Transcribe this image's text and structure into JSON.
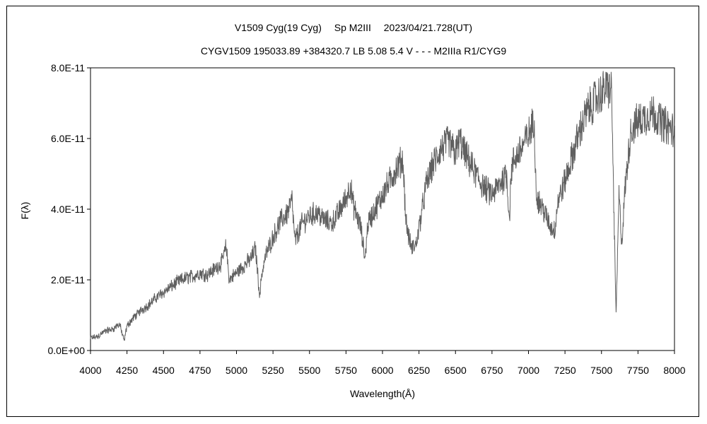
{
  "chart_data": {
    "type": "line",
    "title": "V1509 Cyg(19 Cyg)　 Sp M2III　 2023/04/21.728(UT)",
    "subtitle": "CYGV1509 195033.89 +384320.7 LB 5.08 5.4 V - - - M2IIIa R1/CYG9",
    "xlabel": "Wavelength(Å)",
    "ylabel": "F(λ)",
    "xlim": [
      4000,
      8000
    ],
    "ylim": [
      0,
      8e-11
    ],
    "x_ticks": [
      "4000",
      "4250",
      "4500",
      "4750",
      "5000",
      "5250",
      "5500",
      "5750",
      "6000",
      "6250",
      "6500",
      "6750",
      "7000",
      "7250",
      "7500",
      "7750",
      "8000"
    ],
    "y_ticks": [
      "0.0E+00",
      "2.0E-11",
      "4.0E-11",
      "6.0E-11",
      "8.0E-11"
    ],
    "grid": false,
    "legend": "none",
    "line_color": "#606060",
    "series": [
      {
        "x": [
          4000,
          4050,
          4100,
          4150,
          4200,
          4230,
          4250,
          4300,
          4350,
          4400,
          4450,
          4500,
          4550,
          4600,
          4650,
          4700,
          4750,
          4800,
          4850,
          4900,
          4930,
          4950,
          5000,
          5050,
          5100,
          5130,
          5160,
          5170,
          5200,
          5230,
          5260,
          5300,
          5350,
          5380,
          5400,
          5450,
          5500,
          5550,
          5600,
          5650,
          5700,
          5750,
          5780,
          5800,
          5850,
          5880,
          5900,
          5950,
          6000,
          6050,
          6100,
          6140,
          6160,
          6180,
          6200,
          6230,
          6260,
          6300,
          6350,
          6400,
          6450,
          6500,
          6530,
          6560,
          6600,
          6650,
          6700,
          6750,
          6800,
          6850,
          6870,
          6880,
          6900,
          6950,
          7000,
          7040,
          7050,
          7060,
          7100,
          7150,
          7180,
          7200,
          7250,
          7300,
          7350,
          7400,
          7450,
          7500,
          7550,
          7570,
          7580,
          7600,
          7620,
          7640,
          7660,
          7700,
          7750,
          7800,
          7850,
          7900,
          7950,
          8000
        ],
        "y": [
          3.5e-12,
          4e-12,
          5.5e-12,
          6e-12,
          7.5e-12,
          2.5e-12,
          7e-12,
          9.5e-12,
          1.15e-11,
          1.3e-11,
          1.5e-11,
          1.65e-11,
          1.8e-11,
          1.95e-11,
          2.05e-11,
          2.1e-11,
          2.2e-11,
          2.15e-11,
          2.3e-11,
          2.5e-11,
          2.95e-11,
          2e-11,
          2.2e-11,
          2.4e-11,
          2.6e-11,
          2.9e-11,
          1.5e-11,
          2.1e-11,
          2.7e-11,
          3e-11,
          3.3e-11,
          3.65e-11,
          3.9e-11,
          4.25e-11,
          3.1e-11,
          3.6e-11,
          3.8e-11,
          3.9e-11,
          3.7e-11,
          3.6e-11,
          3.9e-11,
          4.3e-11,
          4.7e-11,
          4.1e-11,
          3.5e-11,
          2.6e-11,
          3.6e-11,
          4e-11,
          4.4e-11,
          4.8e-11,
          5.2e-11,
          5.4e-11,
          3.7e-11,
          3.2e-11,
          2.9e-11,
          3e-11,
          3.7e-11,
          4.7e-11,
          5.3e-11,
          5.7e-11,
          5.9e-11,
          5.6e-11,
          5.95e-11,
          5.6e-11,
          5.3e-11,
          4.9e-11,
          4.6e-11,
          4.4e-11,
          4.7e-11,
          5e-11,
          3.7e-11,
          5e-11,
          5.4e-11,
          5.7e-11,
          6.1e-11,
          6.5e-11,
          4.8e-11,
          4.3e-11,
          4e-11,
          3.5e-11,
          3.4e-11,
          4.2e-11,
          4.8e-11,
          5.5e-11,
          6.2e-11,
          6.75e-11,
          7.05e-11,
          7.3e-11,
          7.45e-11,
          7.3e-11,
          5e-11,
          1e-11,
          4.4e-11,
          3e-11,
          4.5e-11,
          6.2e-11,
          6.5e-11,
          6.6e-11,
          6.75e-11,
          6.5e-11,
          6.35e-11,
          6.2e-11
        ]
      }
    ]
  }
}
